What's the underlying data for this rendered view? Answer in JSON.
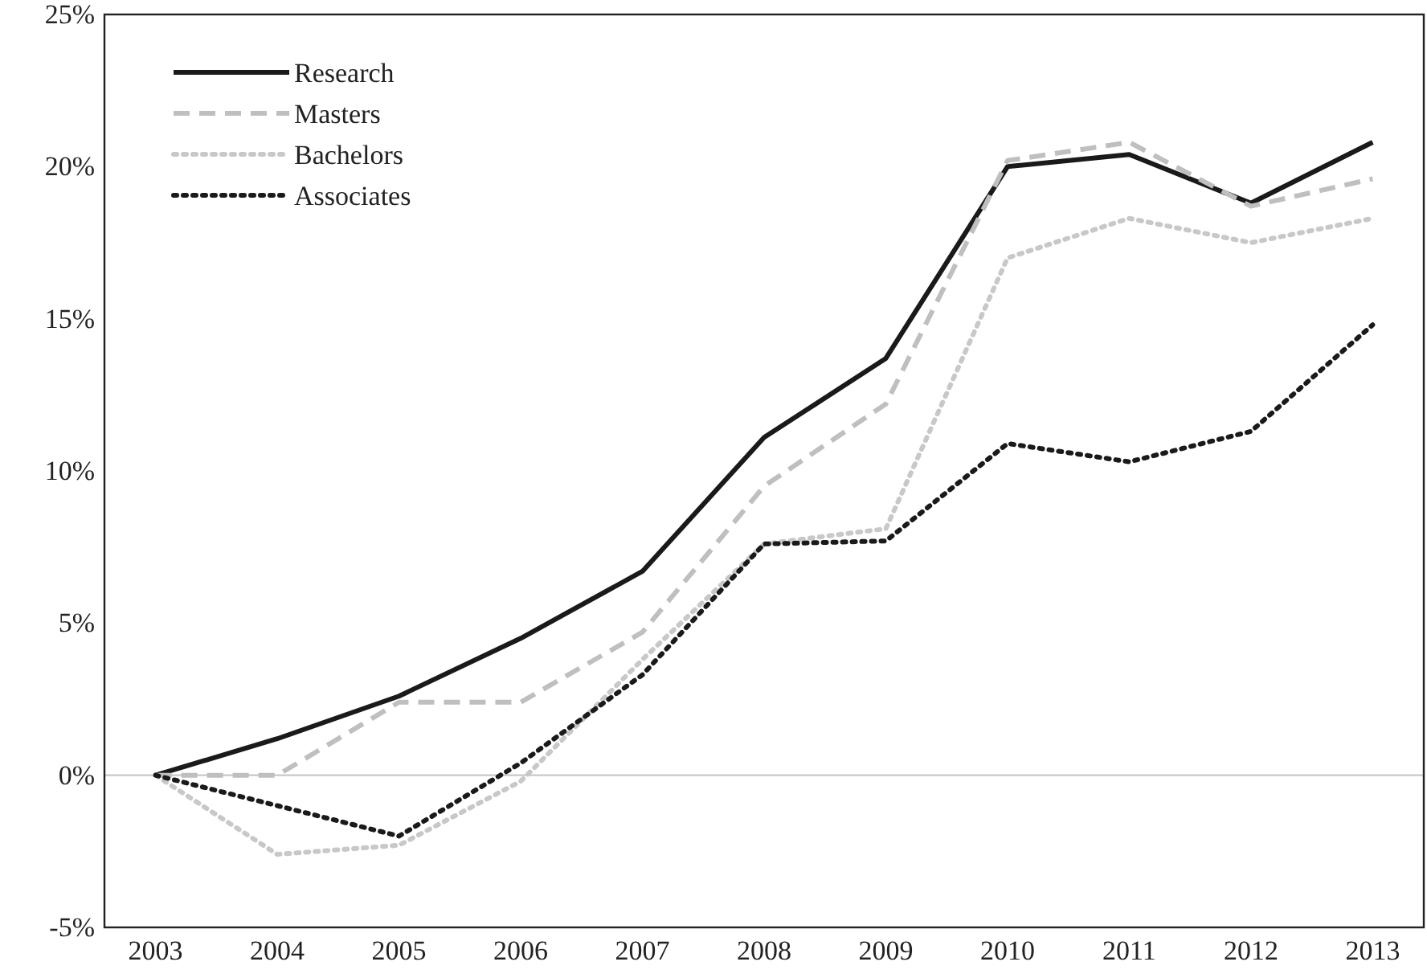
{
  "chart_data": {
    "type": "line",
    "categories": [
      "2003",
      "2004",
      "2005",
      "2006",
      "2007",
      "2008",
      "2009",
      "2010",
      "2011",
      "2012",
      "2013"
    ],
    "series": [
      {
        "name": "Research",
        "color": "#1a1a1a",
        "line_style": "solid",
        "values": [
          0,
          1.2,
          2.6,
          4.5,
          6.7,
          11.1,
          13.7,
          20.0,
          20.4,
          18.8,
          20.8
        ]
      },
      {
        "name": "Masters",
        "color": "#bfbfbf",
        "line_style": "dashed",
        "values": [
          0,
          0,
          2.4,
          2.4,
          4.7,
          9.5,
          12.2,
          20.2,
          20.8,
          18.7,
          19.6
        ]
      },
      {
        "name": "Bachelors",
        "color": "#c8c8c8",
        "line_style": "dotted",
        "values": [
          0,
          -2.6,
          -2.3,
          -0.2,
          3.8,
          7.6,
          8.1,
          17.0,
          18.3,
          17.5,
          18.3
        ]
      },
      {
        "name": "Associates",
        "color": "#1a1a1a",
        "line_style": "dotted",
        "values": [
          0,
          -1.0,
          -2.0,
          0.4,
          3.3,
          7.6,
          7.7,
          10.9,
          10.3,
          11.3,
          14.8
        ]
      }
    ],
    "ylim": [
      -5,
      25
    ],
    "yticks": [
      {
        "value": -5,
        "label": "-5%"
      },
      {
        "value": 0,
        "label": "0%"
      },
      {
        "value": 5,
        "label": "5%"
      },
      {
        "value": 10,
        "label": "10%"
      },
      {
        "value": 15,
        "label": "15%"
      },
      {
        "value": 20,
        "label": "20%"
      },
      {
        "value": 25,
        "label": "25%"
      }
    ],
    "ref_lines": [
      {
        "axis": "y",
        "value": 0,
        "color": "#c8c8c8"
      }
    ],
    "grid": false,
    "legend": "top left",
    "marker": "none"
  }
}
